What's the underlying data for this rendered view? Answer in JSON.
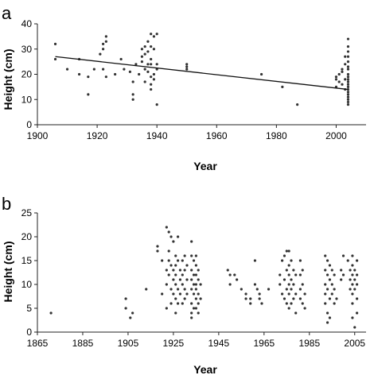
{
  "chart_data": [
    {
      "panel": "a",
      "type": "scatter",
      "xlabel": "Year",
      "ylabel": "Height (cm)",
      "xlim": [
        1900,
        2010
      ],
      "ylim": [
        0,
        40
      ],
      "xticks": [
        1900,
        1920,
        1940,
        1960,
        1980,
        2000
      ],
      "yticks": [
        0,
        10,
        20,
        30,
        40
      ],
      "trendline": {
        "x": [
          1906,
          2004
        ],
        "y": [
          27,
          14
        ]
      },
      "points": [
        [
          1906,
          32
        ],
        [
          1906,
          26
        ],
        [
          1910,
          22
        ],
        [
          1914,
          20
        ],
        [
          1914,
          26
        ],
        [
          1917,
          12
        ],
        [
          1917,
          19
        ],
        [
          1919,
          22
        ],
        [
          1921,
          28
        ],
        [
          1922,
          22
        ],
        [
          1922,
          30
        ],
        [
          1922,
          32
        ],
        [
          1923,
          33
        ],
        [
          1923,
          35
        ],
        [
          1923,
          19
        ],
        [
          1926,
          20
        ],
        [
          1928,
          26
        ],
        [
          1929,
          22
        ],
        [
          1931,
          21
        ],
        [
          1932,
          10
        ],
        [
          1932,
          12
        ],
        [
          1932,
          17
        ],
        [
          1933,
          24
        ],
        [
          1934,
          20
        ],
        [
          1935,
          25
        ],
        [
          1935,
          27
        ],
        [
          1935,
          30
        ],
        [
          1936,
          17
        ],
        [
          1936,
          22
        ],
        [
          1936,
          28
        ],
        [
          1936,
          31
        ],
        [
          1937,
          24
        ],
        [
          1937,
          29
        ],
        [
          1937,
          33
        ],
        [
          1937,
          21
        ],
        [
          1938,
          36
        ],
        [
          1938,
          19
        ],
        [
          1938,
          14
        ],
        [
          1938,
          16
        ],
        [
          1938,
          24
        ],
        [
          1938,
          26
        ],
        [
          1938,
          31
        ],
        [
          1939,
          20
        ],
        [
          1939,
          18
        ],
        [
          1939,
          30
        ],
        [
          1939,
          35
        ],
        [
          1940,
          8
        ],
        [
          1940,
          22
        ],
        [
          1940,
          24
        ],
        [
          1940,
          36
        ],
        [
          1950,
          22
        ],
        [
          1950,
          23
        ],
        [
          1950,
          24
        ],
        [
          1975,
          20
        ],
        [
          1982,
          15
        ],
        [
          1987,
          8
        ],
        [
          2000,
          15
        ],
        [
          2000,
          18
        ],
        [
          2000,
          19
        ],
        [
          2001,
          17
        ],
        [
          2001,
          20
        ],
        [
          2002,
          16
        ],
        [
          2002,
          21
        ],
        [
          2002,
          22
        ],
        [
          2003,
          14
        ],
        [
          2003,
          18
        ],
        [
          2003,
          24
        ],
        [
          2003,
          27
        ],
        [
          2004,
          8
        ],
        [
          2004,
          10
        ],
        [
          2004,
          12
        ],
        [
          2004,
          14
        ],
        [
          2004,
          16
        ],
        [
          2004,
          18
        ],
        [
          2004,
          20
        ],
        [
          2004,
          22
        ],
        [
          2004,
          23
        ],
        [
          2004,
          25
        ],
        [
          2004,
          27
        ],
        [
          2004,
          29
        ],
        [
          2004,
          31
        ],
        [
          2004,
          34
        ],
        [
          2004,
          11
        ],
        [
          2004,
          9
        ],
        [
          2004,
          13
        ],
        [
          2004,
          15
        ],
        [
          2004,
          17
        ],
        [
          2004,
          19
        ]
      ]
    },
    {
      "panel": "b",
      "type": "scatter",
      "xlabel": "Year",
      "ylabel": "Height (cm)",
      "xlim": [
        1865,
        2010
      ],
      "ylim": [
        0,
        25
      ],
      "xticks": [
        1865,
        1885,
        1905,
        1925,
        1945,
        1965,
        1985,
        2005
      ],
      "yticks": [
        0,
        5,
        10,
        15,
        20,
        25
      ],
      "points": [
        [
          1871,
          4
        ],
        [
          1904,
          7
        ],
        [
          1904,
          5
        ],
        [
          1906,
          3
        ],
        [
          1907,
          4
        ],
        [
          1913,
          9
        ],
        [
          1918,
          17
        ],
        [
          1918,
          18
        ],
        [
          1920,
          15
        ],
        [
          1920,
          8
        ],
        [
          1922,
          22
        ],
        [
          1922,
          13
        ],
        [
          1922,
          5
        ],
        [
          1922,
          10
        ],
        [
          1923,
          21
        ],
        [
          1923,
          17
        ],
        [
          1923,
          15
        ],
        [
          1923,
          12
        ],
        [
          1924,
          20
        ],
        [
          1924,
          14
        ],
        [
          1924,
          9
        ],
        [
          1924,
          6
        ],
        [
          1925,
          19
        ],
        [
          1925,
          13
        ],
        [
          1925,
          11
        ],
        [
          1925,
          8
        ],
        [
          1926,
          16
        ],
        [
          1926,
          14
        ],
        [
          1926,
          12
        ],
        [
          1926,
          10
        ],
        [
          1926,
          7
        ],
        [
          1926,
          4
        ],
        [
          1927,
          20
        ],
        [
          1927,
          15
        ],
        [
          1927,
          9
        ],
        [
          1927,
          6
        ],
        [
          1928,
          13
        ],
        [
          1928,
          11
        ],
        [
          1928,
          8
        ],
        [
          1929,
          15
        ],
        [
          1929,
          12
        ],
        [
          1929,
          10
        ],
        [
          1929,
          6
        ],
        [
          1930,
          16
        ],
        [
          1930,
          13
        ],
        [
          1930,
          9
        ],
        [
          1930,
          7
        ],
        [
          1931,
          14
        ],
        [
          1931,
          11
        ],
        [
          1931,
          8
        ],
        [
          1933,
          19
        ],
        [
          1933,
          16
        ],
        [
          1933,
          13
        ],
        [
          1933,
          11
        ],
        [
          1933,
          9
        ],
        [
          1933,
          6
        ],
        [
          1933,
          4
        ],
        [
          1933,
          3
        ],
        [
          1934,
          15
        ],
        [
          1934,
          12
        ],
        [
          1934,
          10
        ],
        [
          1934,
          8
        ],
        [
          1934,
          5
        ],
        [
          1935,
          16
        ],
        [
          1935,
          14
        ],
        [
          1935,
          12
        ],
        [
          1935,
          10
        ],
        [
          1935,
          9
        ],
        [
          1935,
          7
        ],
        [
          1935,
          5
        ],
        [
          1936,
          13
        ],
        [
          1936,
          11
        ],
        [
          1936,
          8
        ],
        [
          1936,
          6
        ],
        [
          1936,
          4
        ],
        [
          1937,
          10
        ],
        [
          1937,
          7
        ],
        [
          1949,
          13
        ],
        [
          1950,
          12
        ],
        [
          1950,
          10
        ],
        [
          1952,
          12
        ],
        [
          1953,
          11
        ],
        [
          1955,
          9
        ],
        [
          1957,
          8
        ],
        [
          1957,
          7
        ],
        [
          1959,
          7
        ],
        [
          1959,
          6
        ],
        [
          1961,
          15
        ],
        [
          1961,
          10
        ],
        [
          1962,
          9
        ],
        [
          1963,
          8
        ],
        [
          1963,
          7
        ],
        [
          1964,
          6
        ],
        [
          1967,
          9
        ],
        [
          1972,
          12
        ],
        [
          1972,
          10
        ],
        [
          1973,
          15
        ],
        [
          1973,
          8
        ],
        [
          1974,
          16
        ],
        [
          1974,
          11
        ],
        [
          1974,
          7
        ],
        [
          1975,
          17
        ],
        [
          1975,
          13
        ],
        [
          1975,
          9
        ],
        [
          1975,
          6
        ],
        [
          1976,
          17
        ],
        [
          1976,
          14
        ],
        [
          1976,
          12
        ],
        [
          1976,
          10
        ],
        [
          1976,
          8
        ],
        [
          1976,
          5
        ],
        [
          1977,
          15
        ],
        [
          1977,
          11
        ],
        [
          1977,
          9
        ],
        [
          1977,
          6
        ],
        [
          1978,
          13
        ],
        [
          1978,
          10
        ],
        [
          1978,
          7
        ],
        [
          1979,
          12
        ],
        [
          1979,
          8
        ],
        [
          1979,
          4
        ],
        [
          1981,
          15
        ],
        [
          1981,
          12
        ],
        [
          1981,
          9
        ],
        [
          1981,
          7
        ],
        [
          1982,
          13
        ],
        [
          1982,
          10
        ],
        [
          1982,
          6
        ],
        [
          1983,
          8
        ],
        [
          1983,
          5
        ],
        [
          1992,
          16
        ],
        [
          1992,
          13
        ],
        [
          1992,
          10
        ],
        [
          1992,
          8
        ],
        [
          1992,
          6
        ],
        [
          1993,
          15
        ],
        [
          1993,
          12
        ],
        [
          1993,
          9
        ],
        [
          1993,
          4
        ],
        [
          1993,
          2
        ],
        [
          1994,
          14
        ],
        [
          1994,
          11
        ],
        [
          1994,
          7
        ],
        [
          1994,
          3
        ],
        [
          1995,
          13
        ],
        [
          1995,
          10
        ],
        [
          1995,
          8
        ],
        [
          1996,
          12
        ],
        [
          1996,
          9
        ],
        [
          1996,
          6
        ],
        [
          1997,
          7
        ],
        [
          1999,
          13
        ],
        [
          1999,
          11
        ],
        [
          2000,
          16
        ],
        [
          2000,
          12
        ],
        [
          2002,
          15
        ],
        [
          2003,
          13
        ],
        [
          2003,
          11
        ],
        [
          2003,
          9
        ],
        [
          2004,
          16
        ],
        [
          2004,
          14
        ],
        [
          2004,
          12
        ],
        [
          2004,
          10
        ],
        [
          2004,
          8
        ],
        [
          2004,
          6
        ],
        [
          2004,
          3
        ],
        [
          2005,
          13
        ],
        [
          2005,
          11
        ],
        [
          2005,
          9
        ],
        [
          2005,
          1
        ],
        [
          2006,
          15
        ],
        [
          2006,
          12
        ],
        [
          2006,
          10
        ],
        [
          2006,
          7
        ],
        [
          2006,
          4
        ]
      ]
    }
  ]
}
